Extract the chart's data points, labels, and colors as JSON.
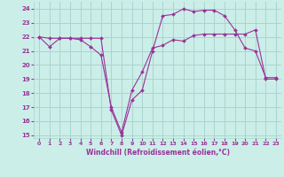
{
  "xlabel": "Windchill (Refroidissement éolien,°C)",
  "background_color": "#cceee8",
  "grid_color": "#aad4ce",
  "line_color": "#993399",
  "xlabel_color": "#993399",
  "line1_x": [
    0,
    1,
    2,
    3,
    4,
    5,
    6,
    7,
    8,
    9,
    10,
    11,
    12,
    13,
    14,
    15,
    16,
    17,
    18,
    19,
    20,
    21,
    22,
    23
  ],
  "line1_y": [
    22.0,
    21.3,
    21.9,
    21.9,
    21.8,
    21.3,
    20.7,
    17.0,
    15.2,
    18.2,
    19.5,
    21.2,
    21.4,
    21.8,
    21.7,
    22.1,
    22.2,
    22.2,
    22.2,
    22.2,
    22.2,
    22.5,
    19.0,
    19.0
  ],
  "line2_x": [
    0,
    1,
    2,
    3,
    4,
    5,
    6,
    7,
    8,
    9,
    10,
    11,
    12,
    13,
    14,
    15,
    16,
    17,
    18,
    19,
    20,
    21,
    22,
    23
  ],
  "line2_y": [
    22.0,
    21.9,
    21.9,
    21.9,
    21.9,
    21.9,
    21.9,
    16.8,
    15.0,
    17.5,
    18.2,
    21.0,
    23.5,
    23.6,
    24.0,
    23.8,
    23.9,
    23.9,
    23.5,
    22.5,
    21.2,
    21.0,
    19.1,
    19.1
  ],
  "ylim": [
    14.8,
    24.5
  ],
  "xlim": [
    -0.5,
    23.5
  ],
  "yticks": [
    15,
    16,
    17,
    18,
    19,
    20,
    21,
    22,
    23,
    24
  ],
  "xticks": [
    0,
    1,
    2,
    3,
    4,
    5,
    6,
    7,
    8,
    9,
    10,
    11,
    12,
    13,
    14,
    15,
    16,
    17,
    18,
    19,
    20,
    21,
    22,
    23
  ]
}
